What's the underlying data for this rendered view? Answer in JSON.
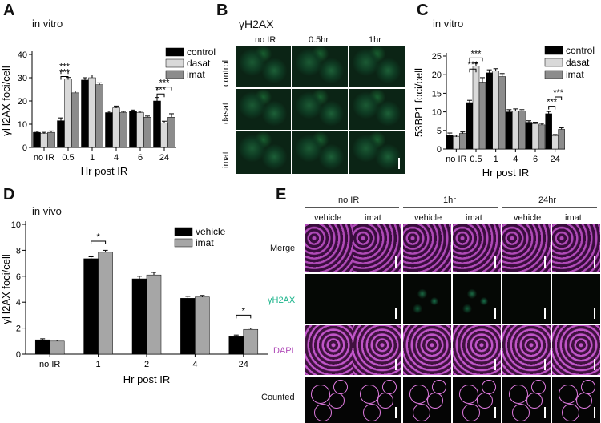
{
  "panels": {
    "A": {
      "letter": "A",
      "note": "in vitro"
    },
    "B": {
      "letter": "B",
      "title": "γH2AX",
      "cols": [
        "no IR",
        "0.5hr",
        "1hr"
      ],
      "rows": [
        "control",
        "dasat",
        "imat"
      ]
    },
    "C": {
      "letter": "C",
      "note": "in vitro"
    },
    "D": {
      "letter": "D",
      "note": "in vivo"
    },
    "E": {
      "letter": "E",
      "groups": [
        "no IR",
        "1hr",
        "24hr"
      ],
      "subcols": [
        "vehicle",
        "imat",
        "vehicle",
        "imat",
        "vehicle",
        "imat"
      ],
      "rows": [
        "Merge",
        "γH2AX",
        "DAPI",
        "Counted"
      ]
    }
  },
  "colors": {
    "control": "#000000",
    "dasat": "#d9d9d9",
    "imat": "#8c8c8c",
    "vehicle": "#000000",
    "imat_d": "#a6a6a6",
    "gh2ax": "#19b38a",
    "dapi": "#b04ab8"
  },
  "chart_data": [
    {
      "id": "A",
      "type": "bar",
      "categories": [
        "no IR",
        "0.5",
        "1",
        "4",
        "6",
        "24"
      ],
      "series": [
        {
          "name": "control",
          "values": [
            6.5,
            11.5,
            29,
            15,
            15.5,
            20
          ]
        },
        {
          "name": "dasat",
          "values": [
            6,
            29.5,
            30,
            17,
            15,
            10.5
          ]
        },
        {
          "name": "imat",
          "values": [
            6.5,
            23.5,
            27,
            15,
            13,
            13
          ]
        }
      ],
      "errors": [
        [
          0.5,
          1.2,
          1,
          0.6,
          0.6,
          1.5
        ],
        [
          0.5,
          0.6,
          1.2,
          0.8,
          0.6,
          0.8
        ],
        [
          0.6,
          0.8,
          0.8,
          0.5,
          0.5,
          1.5
        ]
      ],
      "xlabel": "Hr post IR",
      "ylabel": "γH2AX foci/cell",
      "ylim": [
        0,
        40
      ],
      "yticks": [
        0,
        10,
        20,
        30,
        40
      ],
      "sig": [
        {
          "group": 1,
          "label": "***"
        },
        {
          "group": 1,
          "label": "***"
        },
        {
          "group": 5,
          "label": "***"
        },
        {
          "group": 5,
          "label": "***"
        }
      ],
      "legend": "top-right"
    },
    {
      "id": "C",
      "type": "bar",
      "categories": [
        "no IR",
        "0.5",
        "1",
        "4",
        "6",
        "24"
      ],
      "series": [
        {
          "name": "control",
          "values": [
            3.8,
            12.5,
            20.5,
            10,
            7.2,
            9.5
          ]
        },
        {
          "name": "dasat",
          "values": [
            3.3,
            22.3,
            21,
            10.3,
            6.8,
            3.5
          ]
        },
        {
          "name": "imat",
          "values": [
            4.2,
            18,
            19.5,
            10.2,
            6.5,
            5.3
          ]
        }
      ],
      "errors": [
        [
          0.5,
          0.6,
          0.8,
          0.6,
          0.4,
          0.6
        ],
        [
          0.4,
          0.8,
          0.6,
          0.5,
          0.4,
          0.4
        ],
        [
          0.4,
          1.2,
          0.8,
          0.4,
          0.4,
          0.4
        ]
      ],
      "xlabel": "Hr post IR",
      "ylabel": "53BP1 foci/cell",
      "ylim": [
        0,
        25
      ],
      "yticks": [
        0,
        5,
        10,
        15,
        20,
        25
      ],
      "sig": [
        {
          "group": 1,
          "label": "***"
        },
        {
          "group": 1,
          "label": "***"
        },
        {
          "group": 5,
          "label": "***"
        },
        {
          "group": 5,
          "label": "***"
        }
      ],
      "legend": "top-right"
    },
    {
      "id": "D",
      "type": "bar",
      "categories": [
        "no IR",
        "1",
        "2",
        "4",
        "24"
      ],
      "series": [
        {
          "name": "vehicle",
          "values": [
            1.1,
            7.35,
            5.8,
            4.3,
            1.35
          ]
        },
        {
          "name": "imat",
          "values": [
            1.0,
            7.85,
            6.1,
            4.4,
            1.9
          ]
        }
      ],
      "errors": [
        [
          0.08,
          0.15,
          0.2,
          0.15,
          0.12
        ],
        [
          0.08,
          0.15,
          0.2,
          0.12,
          0.1
        ]
      ],
      "xlabel": "Hr post IR",
      "ylabel": "γH2AX foci/cell",
      "ylim": [
        0,
        10
      ],
      "yticks": [
        0,
        2,
        4,
        6,
        8,
        10
      ],
      "sig": [
        {
          "group": 1,
          "label": "*"
        },
        {
          "group": 4,
          "label": "*"
        }
      ],
      "legend": "top-right"
    }
  ]
}
